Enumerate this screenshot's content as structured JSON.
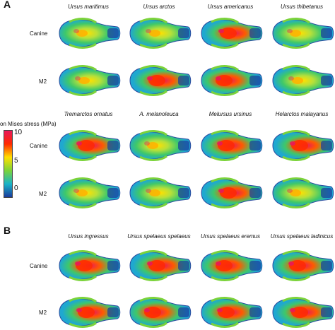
{
  "panels": [
    {
      "label": "A"
    },
    {
      "label": "B"
    }
  ],
  "rows": [
    "Canine",
    "M2"
  ],
  "panelA": {
    "groupTop": [
      "Ursus maritimus",
      "Ursus arctos",
      "Ursus americanus",
      "Ursus thibetanus"
    ],
    "groupBottom": [
      "Tremarctos ornatus",
      "A. melanoleuca",
      "Melursus ursinus",
      "Helarctos malayanus"
    ]
  },
  "panelB": {
    "group": [
      "Ursus ingressus",
      "Ursus spelaeus spelaeus",
      "Ursus spelaeus eremus",
      "Ursus spelaeus ladinicus"
    ]
  },
  "colorbar": {
    "title": "von Mises stress (MPa)",
    "ticks": [
      "10",
      "5",
      "0"
    ],
    "colors": [
      "#e8185a",
      "#ff2a00",
      "#ffe000",
      "#7bd33a",
      "#19b4c8",
      "#1a3a9c"
    ]
  }
}
